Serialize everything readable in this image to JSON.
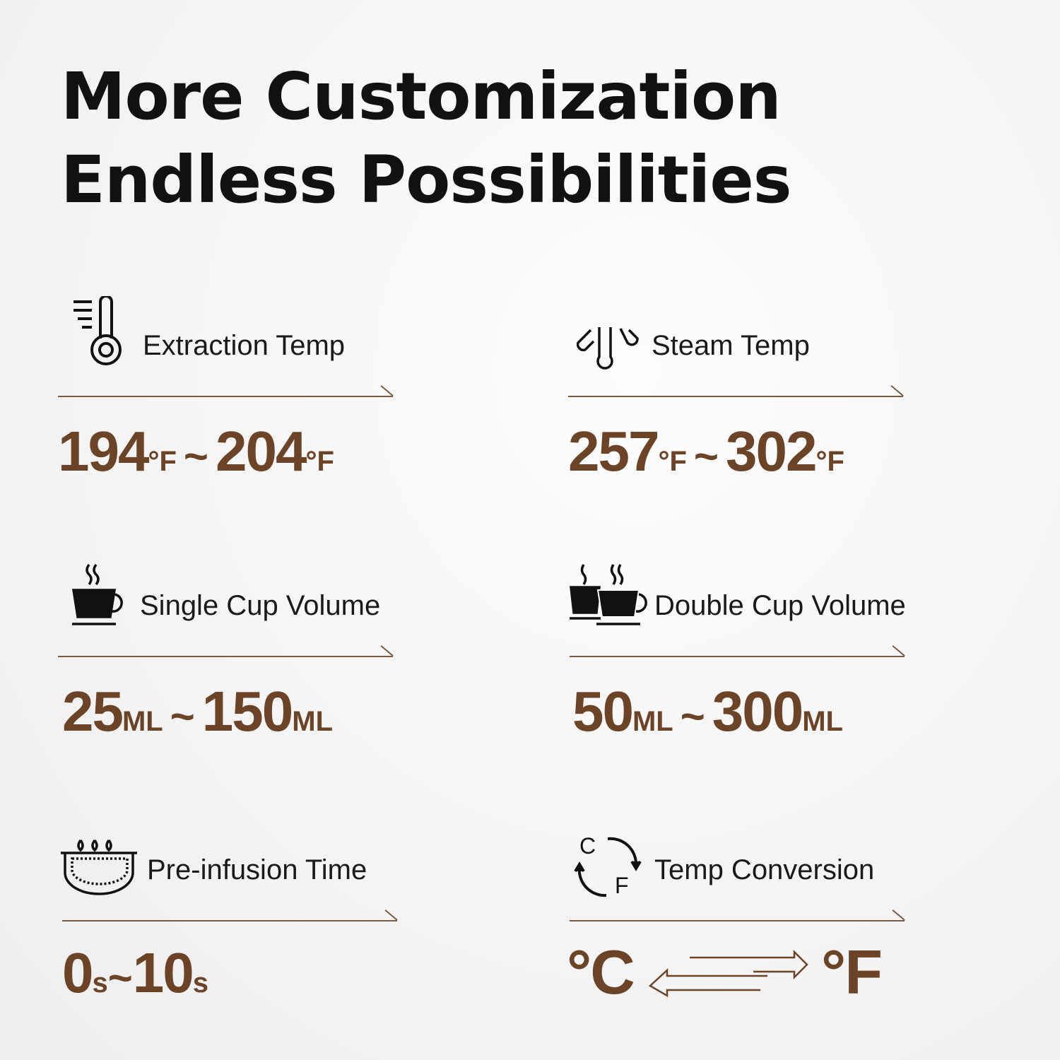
{
  "title": {
    "line1": "More Customization",
    "line2": "Endless Possibilities"
  },
  "accent_color": "#6b4428",
  "features": [
    {
      "label": "Extraction Temp",
      "icon": "thermometer-icon",
      "from": "194",
      "from_unit": "°F",
      "sep": "~",
      "to": "204",
      "to_unit": "°F"
    },
    {
      "label": "Steam Temp",
      "icon": "steam-icon",
      "from": "257",
      "from_unit": "°F",
      "sep": "~",
      "to": "302",
      "to_unit": "°F"
    },
    {
      "label": "Single Cup Volume",
      "icon": "single-cup-icon",
      "from": "25",
      "from_unit": "ML",
      "sep": "~",
      "to": "150",
      "to_unit": "ML"
    },
    {
      "label": "Double Cup Volume",
      "icon": "double-cup-icon",
      "from": "50",
      "from_unit": "ML",
      "sep": "~",
      "to": "300",
      "to_unit": "ML"
    },
    {
      "label": "Pre-infusion Time",
      "icon": "pre-infusion-icon",
      "from": "0",
      "from_unit": "s",
      "sep": "~",
      "to": "10",
      "to_unit": "s"
    },
    {
      "label": "Temp Conversion",
      "icon": "temp-conversion-icon",
      "icon_letters": [
        "C",
        "F"
      ],
      "from": "°C",
      "to": "°F"
    }
  ]
}
